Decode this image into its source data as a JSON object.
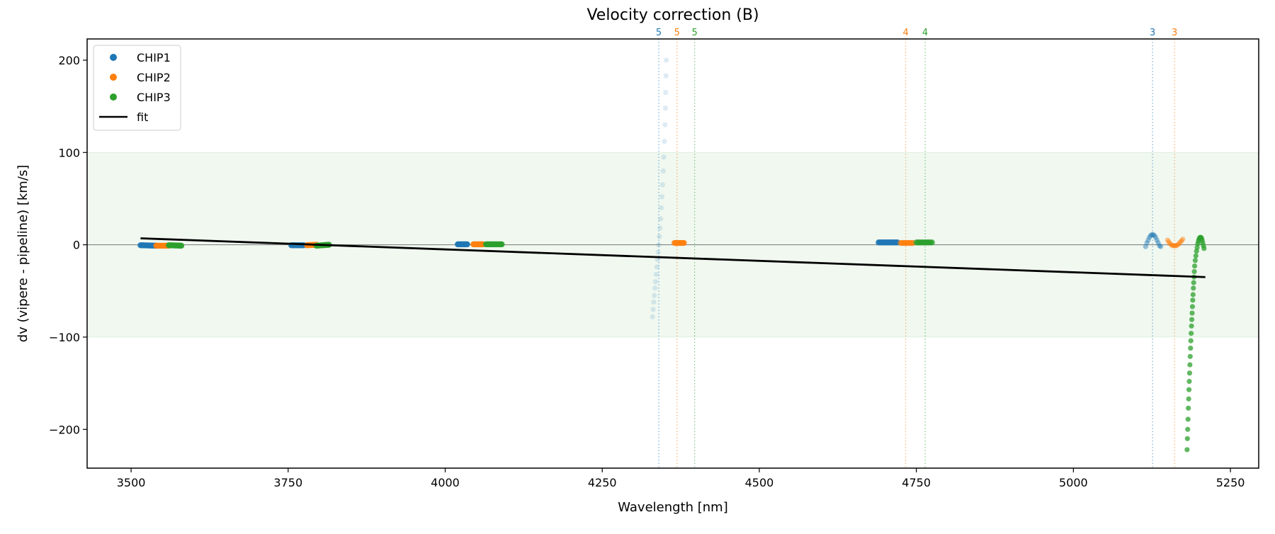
{
  "chart_data": {
    "type": "scatter",
    "title": "Velocity correction (B)",
    "xlabel": "Wavelength [nm]",
    "ylabel": "dv (vipere - pipeline) [km/s]",
    "xlim": [
      3430,
      5295
    ],
    "ylim": [
      -242,
      223
    ],
    "xticks": [
      3500,
      3750,
      4000,
      4250,
      4500,
      4750,
      5000,
      5250
    ],
    "yticks": [
      -200,
      -100,
      0,
      100,
      200
    ],
    "grid": false,
    "band": {
      "y0": -100,
      "y1": 100,
      "color": "#2ca02c"
    },
    "zero_line": 0,
    "legend": {
      "placement": "top-left",
      "entries": [
        {
          "label": "CHIP1",
          "color": "#1f77b4",
          "kind": "marker"
        },
        {
          "label": "CHIP2",
          "color": "#ff7f0e",
          "kind": "marker"
        },
        {
          "label": "CHIP3",
          "color": "#2ca02c",
          "kind": "marker"
        },
        {
          "label": "fit",
          "color": "#000000",
          "kind": "line"
        }
      ]
    },
    "series": [
      {
        "name": "CHIP1",
        "color": "#1f77b4",
        "segments": [
          {
            "x0": 3515,
            "x1": 3540,
            "y0": -0.5,
            "y1": -1,
            "n": 14,
            "alpha": 0.9
          },
          {
            "x0": 3755,
            "x1": 3775,
            "y0": -0.5,
            "y1": -0.5,
            "n": 12,
            "alpha": 0.9
          },
          {
            "x0": 4020,
            "x1": 4035,
            "y0": 0.5,
            "y1": 0.5,
            "n": 12,
            "alpha": 0.9
          },
          {
            "x0": 4690,
            "x1": 4720,
            "y0": 2.5,
            "y1": 2.5,
            "n": 16,
            "alpha": 0.9
          }
        ],
        "points": [
          {
            "alpha": 0.15,
            "xy": [
              [
                4330,
                -78
              ],
              [
                4331,
                -70
              ],
              [
                4332,
                -62
              ],
              [
                4333,
                -55
              ],
              [
                4334,
                -47
              ],
              [
                4335,
                -40
              ],
              [
                4336,
                -32
              ],
              [
                4337,
                -24
              ],
              [
                4338,
                -16
              ],
              [
                4339,
                -8
              ],
              [
                4340,
                0
              ],
              [
                4341,
                9
              ],
              [
                4342,
                18
              ],
              [
                4343,
                28
              ],
              [
                4344,
                40
              ],
              [
                4345,
                52
              ],
              [
                4346,
                65
              ],
              [
                4347,
                80
              ],
              [
                4348,
                95
              ],
              [
                4349,
                112
              ],
              [
                4350,
                130
              ],
              [
                4350.5,
                148
              ],
              [
                4351,
                165
              ],
              [
                4351.5,
                183
              ],
              [
                4352,
                200
              ]
            ]
          },
          {
            "alpha": 0.45,
            "xy": [
              [
                5115,
                -2
              ],
              [
                5117,
                2
              ],
              [
                5119,
                5
              ],
              [
                5121,
                8
              ],
              [
                5123,
                10
              ],
              [
                5125,
                11
              ],
              [
                5127,
                11
              ],
              [
                5129,
                10
              ],
              [
                5131,
                8
              ],
              [
                5133,
                5
              ],
              [
                5135,
                2
              ],
              [
                5137,
                -1
              ],
              [
                5139,
                -2
              ]
            ]
          }
        ]
      },
      {
        "name": "CHIP2",
        "color": "#ff7f0e",
        "segments": [
          {
            "x0": 3540,
            "x1": 3560,
            "y0": -1,
            "y1": -1,
            "n": 12,
            "alpha": 0.9
          },
          {
            "x0": 3780,
            "x1": 3795,
            "y0": -0.5,
            "y1": 0,
            "n": 10,
            "alpha": 0.9
          },
          {
            "x0": 4045,
            "x1": 4060,
            "y0": 0.5,
            "y1": 0.5,
            "n": 12,
            "alpha": 0.9
          },
          {
            "x0": 4365,
            "x1": 4380,
            "y0": 2,
            "y1": 2,
            "n": 10,
            "alpha": 0.8
          },
          {
            "x0": 4725,
            "x1": 4745,
            "y0": 2,
            "y1": 2,
            "n": 12,
            "alpha": 0.6
          }
        ],
        "points": [
          {
            "alpha": 0.5,
            "xy": [
              [
                5150,
                5
              ],
              [
                5152,
                3
              ],
              [
                5154,
                1
              ],
              [
                5156,
                0
              ],
              [
                5158,
                -1
              ],
              [
                5160,
                -1
              ],
              [
                5162,
                -1
              ],
              [
                5164,
                -1
              ],
              [
                5166,
                0
              ],
              [
                5168,
                1
              ],
              [
                5170,
                3
              ],
              [
                5172,
                4
              ],
              [
                5174,
                6
              ]
            ]
          }
        ]
      },
      {
        "name": "CHIP3",
        "color": "#2ca02c",
        "segments": [
          {
            "x0": 3560,
            "x1": 3580,
            "y0": -0.5,
            "y1": -1,
            "n": 12,
            "alpha": 0.9
          },
          {
            "x0": 3795,
            "x1": 3815,
            "y0": -1,
            "y1": 0,
            "n": 12,
            "alpha": 0.9
          },
          {
            "x0": 4065,
            "x1": 4090,
            "y0": 0.5,
            "y1": 0.5,
            "n": 14,
            "alpha": 0.9
          },
          {
            "x0": 4750,
            "x1": 4775,
            "y0": 2.5,
            "y1": 2.5,
            "n": 14,
            "alpha": 0.7
          }
        ],
        "points": [
          {
            "alpha": 0.75,
            "xy": [
              [
                5181,
                -222
              ],
              [
                5181.5,
                -210
              ],
              [
                5182,
                -200
              ],
              [
                5182.5,
                -189
              ],
              [
                5183,
                -177
              ],
              [
                5183.5,
                -167
              ],
              [
                5184,
                -157
              ],
              [
                5184.5,
                -148
              ],
              [
                5185,
                -139
              ],
              [
                5185.5,
                -130
              ],
              [
                5186,
                -121
              ],
              [
                5186.5,
                -112
              ],
              [
                5187,
                -104
              ],
              [
                5187.5,
                -96
              ],
              [
                5188,
                -88
              ],
              [
                5188.5,
                -81
              ],
              [
                5189,
                -74
              ],
              [
                5189.5,
                -67
              ],
              [
                5190,
                -60
              ],
              [
                5190.5,
                -54
              ],
              [
                5191,
                -47
              ],
              [
                5191.5,
                -41
              ],
              [
                5192,
                -35
              ],
              [
                5192.5,
                -29
              ],
              [
                5193,
                -23
              ],
              [
                5194,
                -17
              ],
              [
                5195,
                -12
              ],
              [
                5196,
                -7
              ],
              [
                5197,
                -3
              ],
              [
                5198,
                1
              ],
              [
                5199,
                4
              ],
              [
                5200,
                6
              ],
              [
                5201,
                7.5
              ],
              [
                5202,
                8
              ],
              [
                5203,
                8
              ],
              [
                5204,
                7
              ],
              [
                5205,
                5
              ],
              [
                5206,
                2
              ],
              [
                5207,
                -1
              ],
              [
                5208,
                -4
              ]
            ]
          }
        ]
      }
    ],
    "fit": {
      "label": "fit",
      "x": [
        3515,
        5210
      ],
      "y": [
        7,
        -35
      ]
    },
    "order_lines": [
      {
        "x": 4340,
        "label": "5",
        "color": "#1f77b4"
      },
      {
        "x": 4369,
        "label": "5",
        "color": "#ff7f0e"
      },
      {
        "x": 4397,
        "label": "5",
        "color": "#2ca02c"
      },
      {
        "x": 4733,
        "label": "4",
        "color": "#ff7f0e"
      },
      {
        "x": 4764,
        "label": "4",
        "color": "#2ca02c"
      },
      {
        "x": 5126,
        "label": "3",
        "color": "#1f77b4"
      },
      {
        "x": 5161,
        "label": "3",
        "color": "#ff7f0e"
      }
    ]
  }
}
